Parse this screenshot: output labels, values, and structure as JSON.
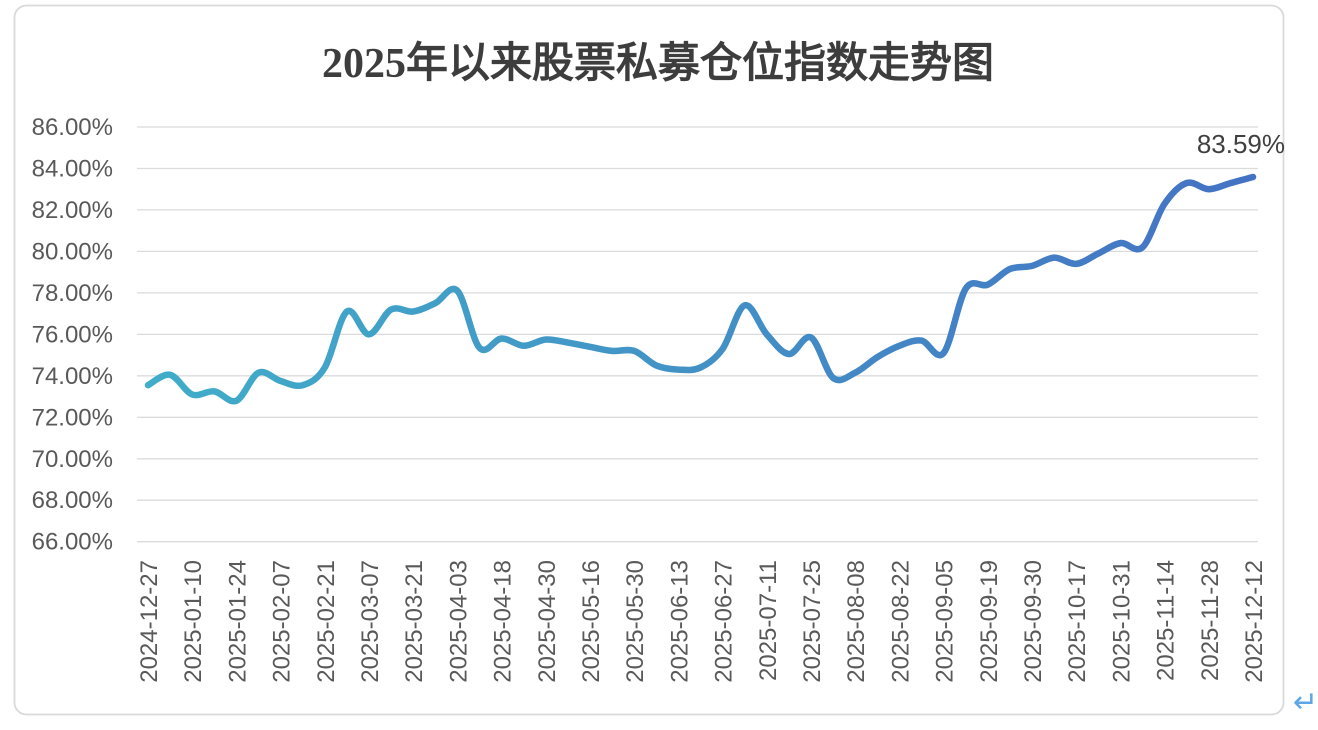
{
  "page": {
    "background": "#FFFFFF",
    "return_mark": "↵",
    "return_mark_color": "#5BA7E8"
  },
  "chart": {
    "title": "2025年以来股票私募仓位指数走势图",
    "title_color": "#3D3D3D",
    "border_color": "#D9D9D9",
    "gridline_color": "#DBDBDB",
    "axis_label_color": "#595959",
    "end_label": "83.59%",
    "end_label_color": "#404040",
    "line_color_start": "#40ADC9",
    "line_color_mid": "#4294C6",
    "line_color_end": "#4472C4"
  },
  "chart_data": {
    "type": "line",
    "title": "2025年以来股票私募仓位指数走势图",
    "xlabel": "",
    "ylabel": "",
    "ylim": [
      66,
      86
    ],
    "y_tick_step": 2,
    "y_tick_labels": [
      "86.00%",
      "84.00%",
      "82.00%",
      "80.00%",
      "78.00%",
      "76.00%",
      "74.00%",
      "72.00%",
      "70.00%",
      "68.00%",
      "66.00%"
    ],
    "x_tick_labels": [
      "2024-12-27",
      "2025-01-10",
      "2025-01-24",
      "2025-02-07",
      "2025-02-21",
      "2025-03-07",
      "2025-03-21",
      "2025-04-03",
      "2025-04-18",
      "2025-04-30",
      "2025-05-16",
      "2025-05-30",
      "2025-06-13",
      "2025-06-27",
      "2025-07-11",
      "2025-07-25",
      "2025-08-08",
      "2025-08-22",
      "2025-09-05",
      "2025-09-19",
      "2025-09-30",
      "2025-10-17",
      "2025-10-31",
      "2025-11-14",
      "2025-11-28",
      "2025-12-12"
    ],
    "x_tick_every_n_points": 2,
    "grid": "horizontal",
    "legend": "none",
    "smooth": true,
    "annotation_last_value": "83.59%",
    "points": [
      {
        "x": "2024-12-27",
        "y": 73.55
      },
      {
        "x": "2025-01-03",
        "y": 74.05
      },
      {
        "x": "2025-01-10",
        "y": 73.1
      },
      {
        "x": "2025-01-17",
        "y": 73.25
      },
      {
        "x": "2025-01-24",
        "y": 72.8
      },
      {
        "x": "2025-01-31",
        "y": 74.15
      },
      {
        "x": "2025-02-07",
        "y": 73.75
      },
      {
        "x": "2025-02-14",
        "y": 73.55
      },
      {
        "x": "2025-02-21",
        "y": 74.4
      },
      {
        "x": "2025-02-28",
        "y": 77.1
      },
      {
        "x": "2025-03-07",
        "y": 76.0
      },
      {
        "x": "2025-03-14",
        "y": 77.2
      },
      {
        "x": "2025-03-21",
        "y": 77.1
      },
      {
        "x": "2025-03-28",
        "y": 77.5
      },
      {
        "x": "2025-04-03",
        "y": 78.1
      },
      {
        "x": "2025-04-11",
        "y": 75.35
      },
      {
        "x": "2025-04-18",
        "y": 75.8
      },
      {
        "x": "2025-04-25",
        "y": 75.45
      },
      {
        "x": "2025-04-30",
        "y": 75.75
      },
      {
        "x": "2025-05-09",
        "y": 75.6
      },
      {
        "x": "2025-05-16",
        "y": 75.4
      },
      {
        "x": "2025-05-23",
        "y": 75.2
      },
      {
        "x": "2025-05-30",
        "y": 75.2
      },
      {
        "x": "2025-06-06",
        "y": 74.5
      },
      {
        "x": "2025-06-13",
        "y": 74.3
      },
      {
        "x": "2025-06-20",
        "y": 74.4
      },
      {
        "x": "2025-06-27",
        "y": 75.3
      },
      {
        "x": "2025-07-04",
        "y": 77.4
      },
      {
        "x": "2025-07-11",
        "y": 76.0
      },
      {
        "x": "2025-07-18",
        "y": 75.05
      },
      {
        "x": "2025-07-25",
        "y": 75.85
      },
      {
        "x": "2025-08-01",
        "y": 73.9
      },
      {
        "x": "2025-08-08",
        "y": 74.15
      },
      {
        "x": "2025-08-15",
        "y": 74.9
      },
      {
        "x": "2025-08-22",
        "y": 75.45
      },
      {
        "x": "2025-08-29",
        "y": 75.7
      },
      {
        "x": "2025-09-05",
        "y": 75.1
      },
      {
        "x": "2025-09-12",
        "y": 78.2
      },
      {
        "x": "2025-09-19",
        "y": 78.4
      },
      {
        "x": "2025-09-26",
        "y": 79.15
      },
      {
        "x": "2025-09-30",
        "y": 79.3
      },
      {
        "x": "2025-10-10",
        "y": 79.7
      },
      {
        "x": "2025-10-17",
        "y": 79.4
      },
      {
        "x": "2025-10-24",
        "y": 79.9
      },
      {
        "x": "2025-10-31",
        "y": 80.4
      },
      {
        "x": "2025-11-07",
        "y": 80.2
      },
      {
        "x": "2025-11-14",
        "y": 82.3
      },
      {
        "x": "2025-11-21",
        "y": 83.3
      },
      {
        "x": "2025-11-28",
        "y": 83.0
      },
      {
        "x": "2025-12-05",
        "y": 83.3
      },
      {
        "x": "2025-12-12",
        "y": 83.59
      }
    ]
  }
}
